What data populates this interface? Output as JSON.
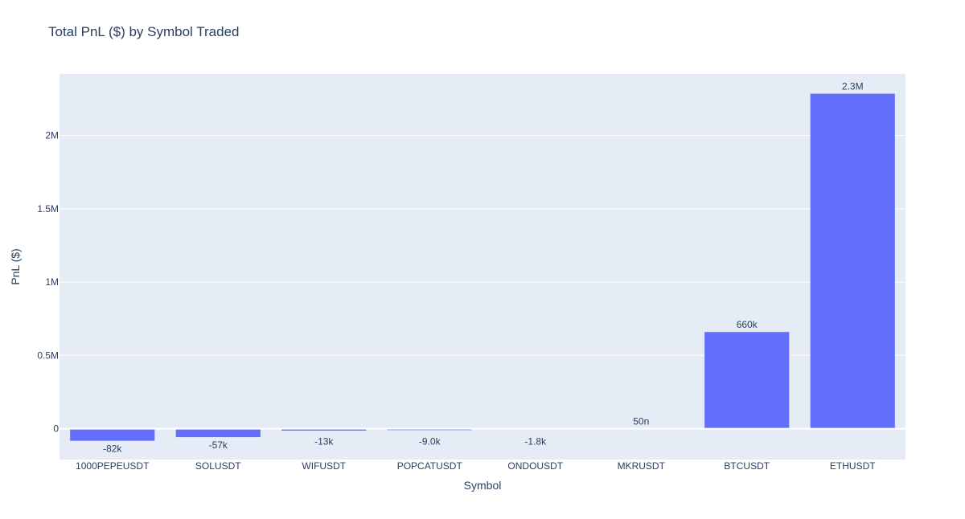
{
  "chart_data": {
    "type": "bar",
    "title": "Total PnL ($) by Symbol Traded",
    "xlabel": "Symbol",
    "ylabel": "PnL ($)",
    "categories": [
      "1000PEPEUSDT",
      "SOLUSDT",
      "WIFUSDT",
      "POPCATUSDT",
      "ONDOUSDT",
      "MKRUSDT",
      "BTCUSDT",
      "ETHUSDT"
    ],
    "values": [
      -82000,
      -57000,
      -13000,
      -9000,
      -1800,
      5e-08,
      660000,
      2285000
    ],
    "data_labels": [
      "-82k",
      "-57k",
      "-13k",
      "-9.0k",
      "-1.8k",
      "50n",
      "660k",
      "2.3M"
    ],
    "yticks": [
      0,
      500000,
      1000000,
      1500000,
      2000000
    ],
    "ytick_labels": [
      "0",
      "0.5M",
      "1M",
      "1.5M",
      "2M"
    ],
    "ylim": [
      -210000,
      2420000
    ],
    "grid": true,
    "colors": {
      "bar": "#636efa",
      "plot_bg": "#e5ecf6",
      "grid": "#ffffff",
      "text": "#2a3f5f"
    }
  }
}
